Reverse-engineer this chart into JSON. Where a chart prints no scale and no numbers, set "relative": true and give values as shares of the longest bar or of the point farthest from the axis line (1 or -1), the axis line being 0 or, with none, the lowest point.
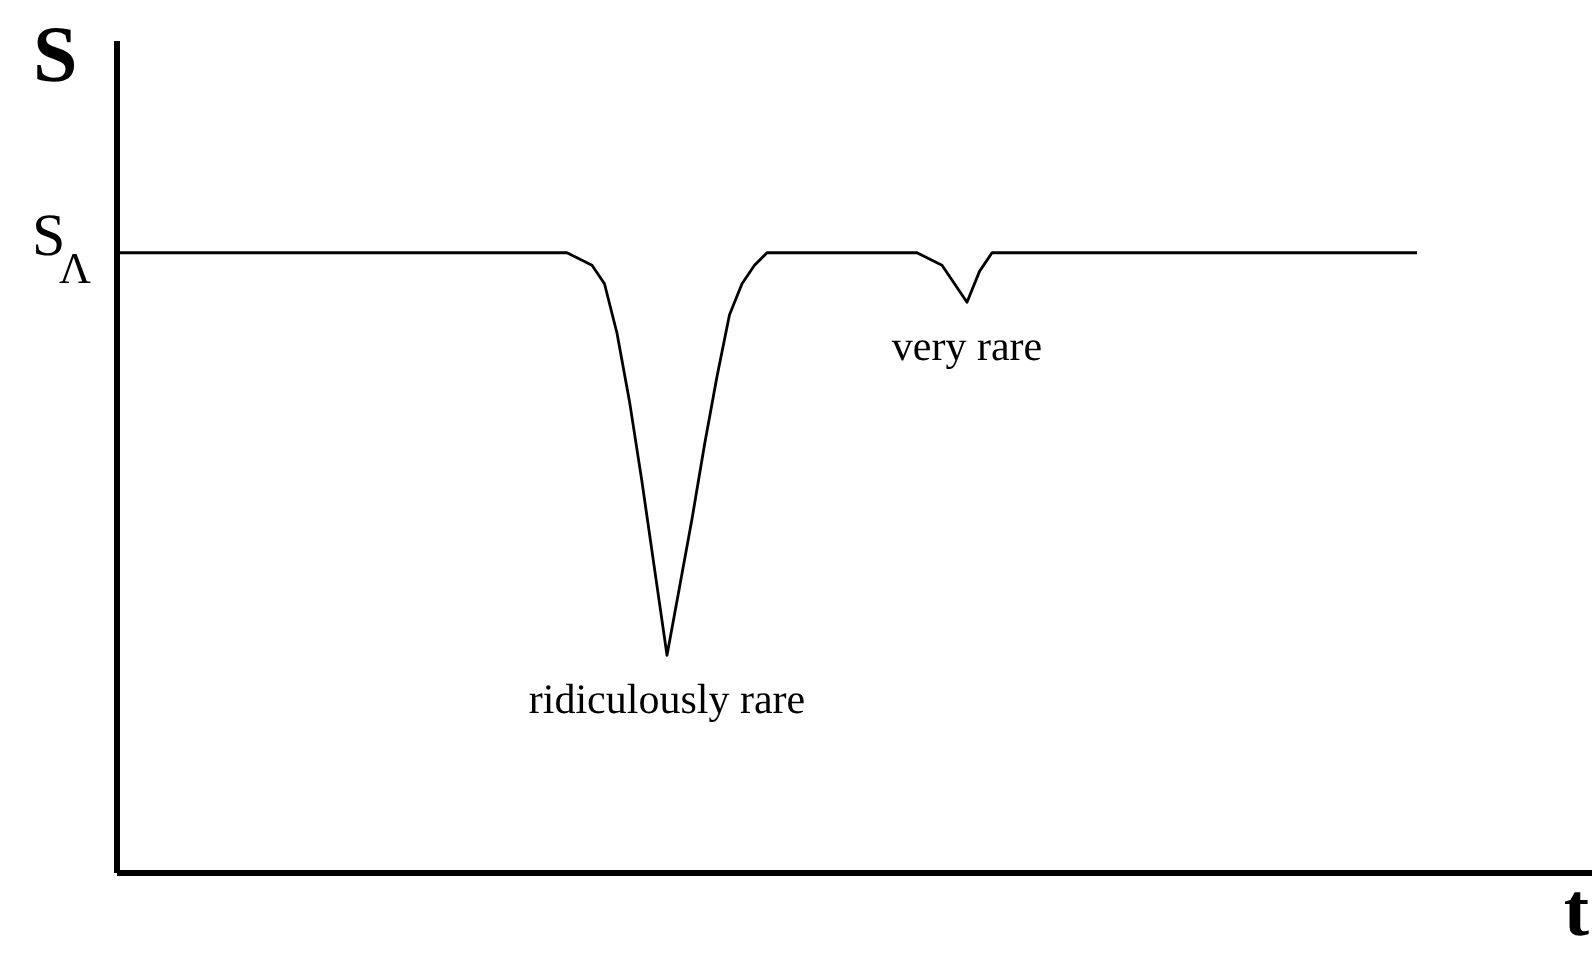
{
  "chart_data": {
    "type": "line",
    "relative": true,
    "xlabel": "t",
    "ylabel": "S",
    "categories": [
      null,
      null,
      null,
      null,
      null,
      null,
      null,
      null,
      null,
      null,
      null,
      null,
      null,
      null,
      null,
      null,
      null,
      null,
      null,
      null,
      null,
      null,
      null,
      null,
      null,
      null,
      null,
      null,
      null,
      null,
      null,
      null,
      null,
      null,
      null,
      null,
      null,
      null,
      null,
      null,
      null,
      null,
      null,
      null,
      null,
      null,
      null,
      null,
      null,
      null,
      null,
      null,
      null,
      null,
      null,
      null,
      null,
      null,
      null,
      null,
      null,
      null,
      null,
      null,
      null,
      null,
      null,
      null,
      null,
      null,
      null,
      null,
      null,
      null,
      null,
      null,
      null,
      null,
      null,
      null,
      null,
      null,
      null,
      null,
      null,
      null,
      null,
      null,
      null,
      null,
      null,
      null,
      null,
      null,
      null,
      null,
      null,
      null,
      null,
      null,
      null,
      null,
      null,
      null,
      null
    ],
    "series": [
      {
        "color": "#000000",
        "values": [
          1,
          1,
          1,
          1,
          1,
          1,
          1,
          1,
          1,
          1,
          1,
          1,
          1,
          1,
          1,
          1,
          1,
          1,
          1,
          1,
          1,
          1,
          1,
          1,
          1,
          1,
          1,
          1,
          1,
          1,
          1,
          1,
          1,
          1,
          1,
          1,
          1,
          0.99,
          0.98,
          0.95,
          0.87,
          0.76,
          0.63,
          0.49,
          0.35,
          0.46,
          0.57,
          0.69,
          0.8,
          0.9,
          0.95,
          0.98,
          1,
          1,
          1,
          1,
          1,
          1,
          1,
          1,
          1,
          1,
          1,
          1,
          1,
          0.99,
          0.98,
          0.95,
          0.92,
          0.97,
          1,
          1,
          1,
          1,
          1,
          1,
          1,
          1,
          1,
          1,
          1,
          1,
          1,
          1,
          1,
          1,
          1,
          1,
          1,
          1,
          1,
          1,
          1,
          1,
          1,
          1,
          1,
          1,
          1,
          1,
          1,
          1,
          1,
          1,
          1
        ]
      }
    ],
    "annotations": [
      "S$_{Λ}$",
      {
        "text": "ridiculously rare",
        "y": 0.35
      },
      {
        "text": "very rare",
        "y": 0.92
      }
    ]
  }
}
